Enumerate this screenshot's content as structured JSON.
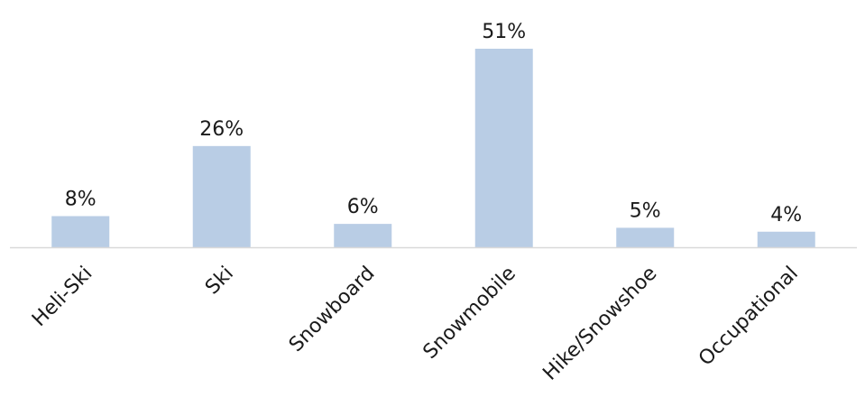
{
  "chart_data": {
    "type": "bar",
    "categories": [
      "Heli-Ski",
      "Ski",
      "Snowboard",
      "Snowmobile",
      "Hike/Snowshoe",
      "Occupational"
    ],
    "values": [
      8,
      26,
      6,
      51,
      5,
      4
    ],
    "data_labels": [
      "8%",
      "26%",
      "6%",
      "51%",
      "5%",
      "4%"
    ],
    "unit": "%",
    "title": "",
    "xlabel": "",
    "ylabel": "",
    "ylim": [
      0,
      51
    ],
    "grid": false,
    "legend": "none",
    "colors": {
      "bar": "#b9cde5",
      "axis": "#d9d9d9",
      "text": "#1a1a1a"
    }
  }
}
